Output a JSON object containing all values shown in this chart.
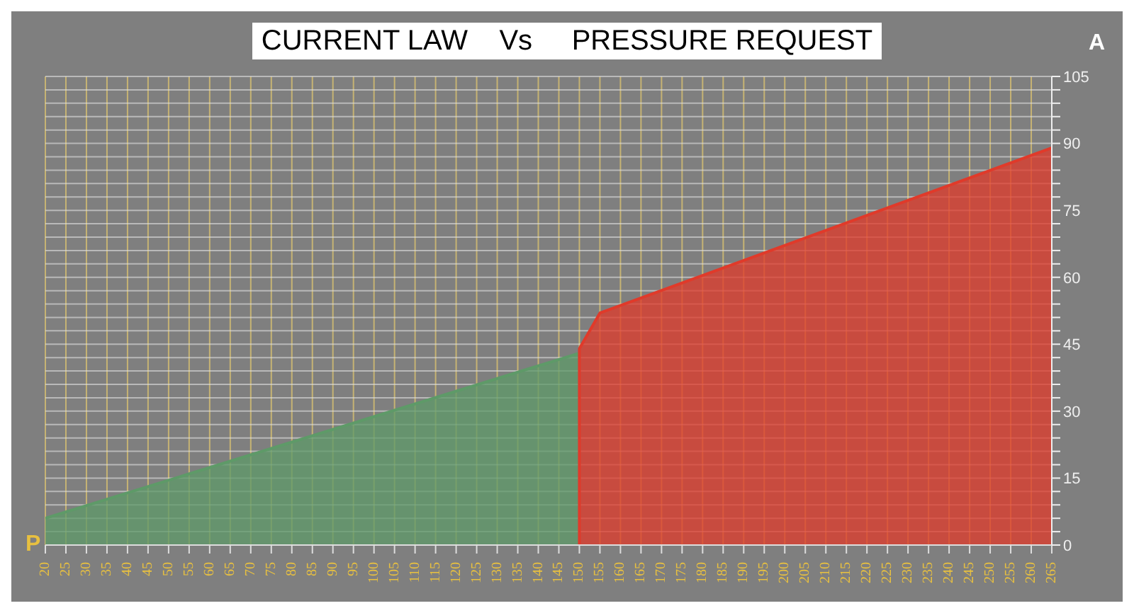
{
  "chart_data": {
    "type": "area",
    "title": "CURRENT LAW    Vs     PRESSURE REQUEST",
    "xlabel": "P",
    "ylabel": "A",
    "series": [
      {
        "color": "#5e9a68",
        "x": [
          20,
          150
        ],
        "values": [
          6,
          43
        ]
      },
      {
        "color": "#e03a2a",
        "x": [
          150,
          150,
          155,
          265
        ],
        "values": [
          0,
          44,
          52,
          89
        ]
      }
    ],
    "xlim": [
      20,
      265
    ],
    "xticks": [
      20,
      25,
      30,
      35,
      40,
      45,
      50,
      55,
      60,
      65,
      70,
      75,
      80,
      85,
      90,
      95,
      100,
      105,
      110,
      115,
      120,
      125,
      130,
      135,
      140,
      145,
      150,
      155,
      160,
      165,
      170,
      175,
      180,
      185,
      190,
      195,
      200,
      205,
      210,
      215,
      220,
      225,
      230,
      235,
      240,
      245,
      250,
      255,
      260,
      265
    ],
    "ylim": [
      0,
      105
    ],
    "yticks": [
      0,
      {
        "value": 3,
        "label": null
      },
      {
        "value": 6,
        "label": null
      },
      {
        "value": 9,
        "label": null
      },
      {
        "value": 12,
        "label": null
      },
      15,
      {
        "value": 18,
        "label": null
      },
      {
        "value": 21,
        "label": null
      },
      {
        "value": 24,
        "label": null
      },
      {
        "value": 27,
        "label": null
      },
      30,
      {
        "value": 33,
        "label": null
      },
      {
        "value": 36,
        "label": null
      },
      {
        "value": 39,
        "label": null
      },
      {
        "value": 42,
        "label": null
      },
      45,
      {
        "value": 48,
        "label": null
      },
      {
        "value": 51,
        "label": null
      },
      {
        "value": 54,
        "label": null
      },
      {
        "value": 57,
        "label": null
      },
      60,
      {
        "value": 63,
        "label": null
      },
      {
        "value": 66,
        "label": null
      },
      {
        "value": 69,
        "label": null
      },
      {
        "value": 72,
        "label": null
      },
      75,
      {
        "value": 78,
        "label": null
      },
      {
        "value": 81,
        "label": null
      },
      {
        "value": 84,
        "label": null
      },
      {
        "value": 87,
        "label": null
      },
      90,
      {
        "value": 93,
        "label": null
      },
      {
        "value": 96,
        "label": null
      },
      {
        "value": 99,
        "label": null
      },
      {
        "value": 102,
        "label": null
      },
      105
    ],
    "grid": true
  }
}
